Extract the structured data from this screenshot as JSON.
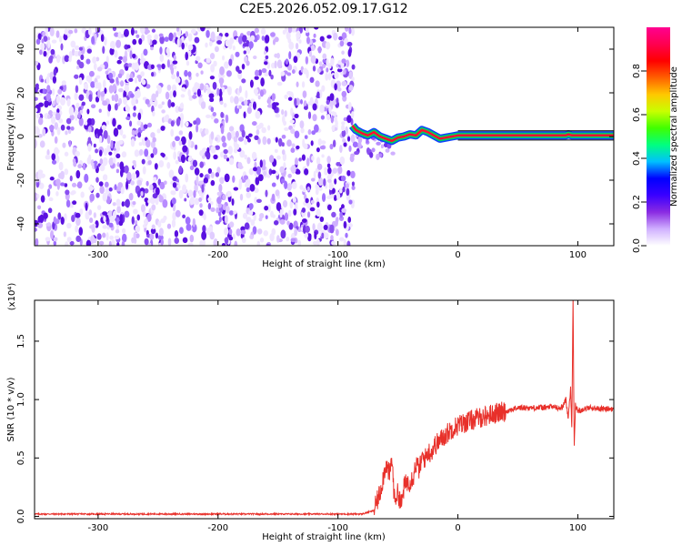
{
  "title": "C2E5.2026.052.09.17.G12",
  "chart_data": [
    {
      "type": "heatmap",
      "xlabel": "Height of straight line (km)",
      "ylabel": "Frequency (Hz)",
      "xlim": [
        -353,
        130
      ],
      "ylim": [
        -50,
        50
      ],
      "xticks": [
        -300,
        -200,
        -100,
        0,
        100
      ],
      "xtick_labels": [
        "-300",
        "-200",
        "-100",
        "0",
        "100"
      ],
      "yticks": [
        -40,
        -20,
        0,
        20,
        40
      ],
      "ytick_labels": [
        "-40",
        "-20",
        "0",
        "20",
        "40"
      ],
      "noise_region_x": [
        -353,
        -87
      ],
      "signal_track": {
        "x": [
          -88,
          -85,
          -80,
          -75,
          -70,
          -65,
          -60,
          -55,
          -50,
          -45,
          -40,
          -35,
          -30,
          -25,
          -20,
          -15,
          -10,
          -5,
          0,
          20,
          40,
          60,
          80,
          90,
          92,
          95,
          100,
          130
        ],
        "freq": [
          5,
          3,
          1.5,
          0.5,
          2,
          0,
          -1,
          -2,
          -0.5,
          0,
          1,
          0.5,
          3,
          2,
          0.5,
          -1,
          -0.5,
          0,
          0.5,
          0.5,
          0.5,
          0.5,
          0.5,
          0.5,
          1,
          0.5,
          0.5,
          0.5
        ]
      },
      "colorbar": {
        "label": "Normalized spectral amplitude",
        "range": [
          0,
          1
        ],
        "ticks": [
          0.0,
          0.2,
          0.4,
          0.6,
          0.8
        ],
        "tick_labels": [
          "0.0",
          "0.2",
          "0.4",
          "0.6",
          "0.8"
        ],
        "colormap": [
          "#ffffff",
          "#d0b0ff",
          "#8a2be2",
          "#3a00ff",
          "#0000ff",
          "#00c0ff",
          "#00ff80",
          "#40ff00",
          "#c8ff00",
          "#ffc800",
          "#ff6000",
          "#ff0000",
          "#ff0050",
          "#ff0090"
        ]
      },
      "grid": false
    },
    {
      "type": "line",
      "xlabel": "Height of straight line (km)",
      "ylabel": "SNR (10 * v/v)",
      "yscale_label": "(x10⁴)",
      "xlim": [
        -353,
        130
      ],
      "ylim": [
        -0.02,
        1.85
      ],
      "xticks": [
        -300,
        -200,
        -100,
        0,
        100
      ],
      "xtick_labels": [
        "-300",
        "-200",
        "-100",
        "0",
        "100"
      ],
      "yticks": [
        0.0,
        0.5,
        1.0,
        1.5
      ],
      "ytick_labels": [
        "0.0",
        "0.5",
        "1.0",
        "1.5"
      ],
      "line_color": "#e8302a",
      "series": [
        {
          "x": [
            -353,
            -300,
            -250,
            -200,
            -150,
            -100,
            -80,
            -70,
            -65,
            -60,
            -57,
            -55,
            -53,
            -50,
            -47,
            -45,
            -42,
            -40,
            -37,
            -35,
            -32,
            -30,
            -27,
            -25,
            -22,
            -20,
            -15,
            -10,
            -5,
            0,
            10,
            20,
            30,
            40,
            50,
            60,
            70,
            80,
            85,
            88,
            90,
            92,
            94,
            95,
            96,
            97,
            98,
            100,
            105,
            110,
            120,
            130
          ],
          "values": [
            0.02,
            0.02,
            0.02,
            0.02,
            0.02,
            0.02,
            0.02,
            0.05,
            0.2,
            0.45,
            0.35,
            0.5,
            0.15,
            0.2,
            0.1,
            0.25,
            0.3,
            0.3,
            0.35,
            0.45,
            0.4,
            0.5,
            0.5,
            0.55,
            0.55,
            0.6,
            0.65,
            0.7,
            0.75,
            0.78,
            0.82,
            0.85,
            0.88,
            0.9,
            0.93,
            0.93,
            0.93,
            0.94,
            0.92,
            0.95,
            1.0,
            0.85,
            1.1,
            0.75,
            1.85,
            0.6,
            0.95,
            0.9,
            0.92,
            0.93,
            0.92,
            0.92
          ]
        }
      ],
      "grid": false
    }
  ]
}
